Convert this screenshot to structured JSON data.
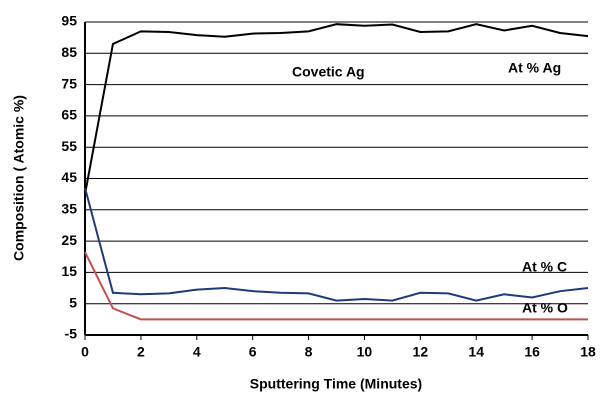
{
  "chart_data": {
    "type": "line",
    "xlabel": "Sputtering Time (Minutes)",
    "ylabel": "Composition ( Atomic %)",
    "annotations": [
      "Covetic Ag",
      "At % Ag",
      "At % C",
      "At % O"
    ],
    "x": [
      0,
      1,
      2,
      3,
      4,
      5,
      6,
      7,
      8,
      9,
      10,
      11,
      12,
      13,
      14,
      15,
      16,
      17,
      18
    ],
    "series": [
      {
        "name": "At % Ag",
        "color": "#000000",
        "values": [
          40,
          88,
          92,
          91.8,
          90.8,
          90.3,
          91.3,
          91.5,
          92,
          94.3,
          93.8,
          94.2,
          91.8,
          92,
          94.3,
          92.3,
          93.8,
          91.5,
          90.5
        ]
      },
      {
        "name": "At % C",
        "color": "#1f3a7a",
        "values": [
          42,
          8.5,
          8,
          8.3,
          9.5,
          10,
          9,
          8.5,
          8.3,
          6,
          6.5,
          6,
          8.5,
          8.3,
          6,
          8,
          7,
          9,
          10
        ]
      },
      {
        "name": "At % O",
        "color": "#c0504d",
        "values": [
          21.5,
          3.5,
          0,
          0,
          0,
          0,
          0,
          0,
          0,
          0,
          0,
          0,
          0,
          0,
          0,
          0,
          0,
          0,
          0
        ]
      }
    ],
    "xlim": [
      0,
      18
    ],
    "xticks": [
      0,
      2,
      4,
      6,
      8,
      10,
      12,
      14,
      16,
      18
    ],
    "ylim": [
      -5,
      95
    ],
    "yticks": [
      -5,
      5,
      15,
      25,
      35,
      45,
      55,
      65,
      75,
      85,
      95
    ],
    "grid": true
  }
}
